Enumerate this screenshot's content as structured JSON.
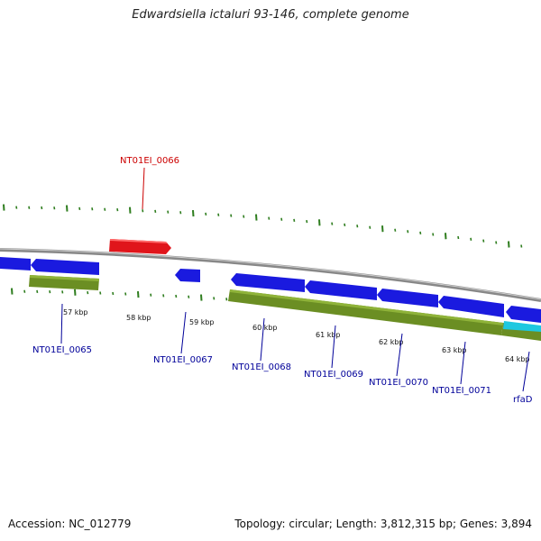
{
  "title": "Edwardsiella ictaluri 93-146, complete genome",
  "footer": {
    "accession": "Accession: NC_012779",
    "stats": "Topology: circular; Length: 3,812,315 bp; Genes: 3,894"
  },
  "colors": {
    "backbone": "#888888",
    "tick": "#2e7d1e",
    "gene_forward": "#e0151b",
    "gene_reverse": "#1a1adf",
    "cds_feature": "#6b8e23",
    "rna_feature": "#1ec8e0",
    "label_forward": "#cc0000",
    "label_reverse": "#000099"
  },
  "kbp_labels": [
    "57 kbp",
    "58 kbp",
    "59 kbp",
    "60 kbp",
    "61 kbp",
    "62 kbp",
    "63 kbp",
    "64 kbp"
  ],
  "gene_labels": [
    {
      "name": "NT01EI_0066",
      "strand": "+"
    },
    {
      "name": "NT01EI_0065",
      "strand": "-"
    },
    {
      "name": "NT01EI_0067",
      "strand": "-"
    },
    {
      "name": "NT01EI_0068",
      "strand": "-"
    },
    {
      "name": "NT01EI_0069",
      "strand": "-"
    },
    {
      "name": "NT01EI_0070",
      "strand": "-"
    },
    {
      "name": "NT01EI_0071",
      "strand": "-"
    },
    {
      "name": "rfaD",
      "strand": "-"
    }
  ]
}
